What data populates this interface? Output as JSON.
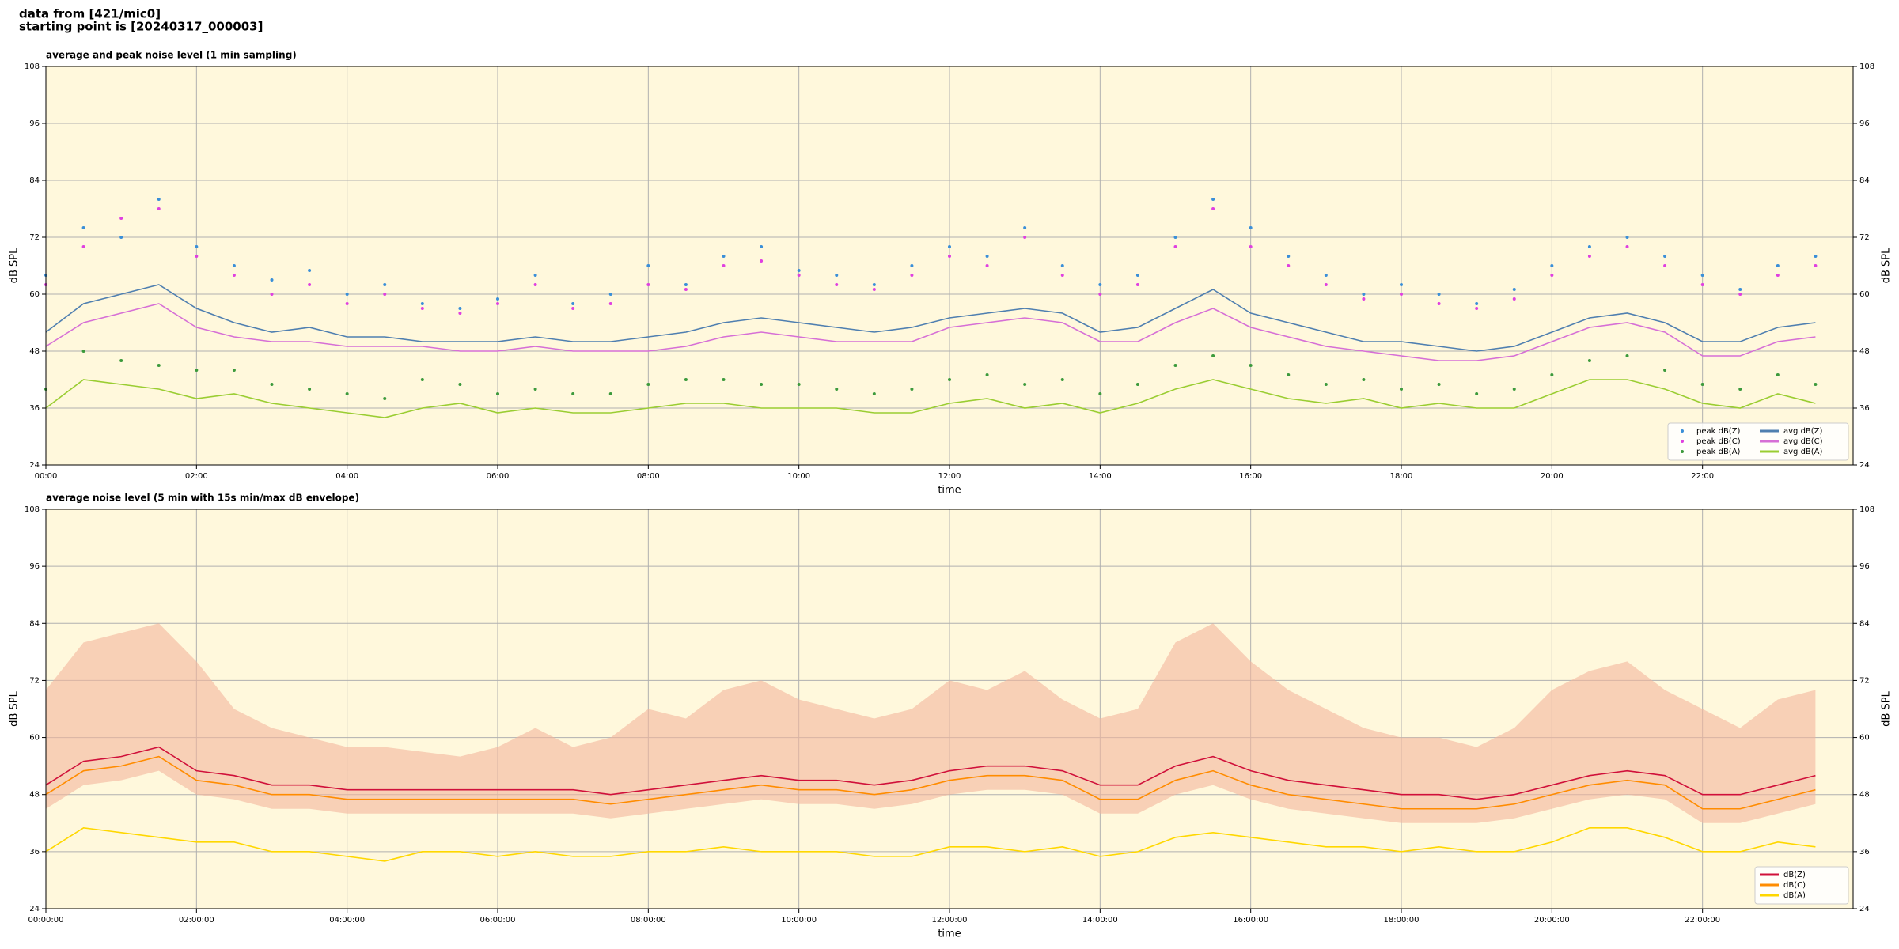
{
  "header": [
    "data from [421/mic0]",
    "starting point is [20240317_000003]"
  ],
  "chart_data": [
    {
      "type": "line",
      "title": "average and peak noise level (1 min sampling)",
      "x_label": "time",
      "y_label": "dB SPL",
      "x": [
        "00:00",
        "00:30",
        "01:00",
        "01:30",
        "02:00",
        "02:30",
        "03:00",
        "03:30",
        "04:00",
        "04:30",
        "05:00",
        "05:30",
        "06:00",
        "06:30",
        "07:00",
        "07:30",
        "08:00",
        "08:30",
        "09:00",
        "09:30",
        "10:00",
        "10:30",
        "11:00",
        "11:30",
        "12:00",
        "12:30",
        "13:00",
        "13:30",
        "14:00",
        "14:30",
        "15:00",
        "15:30",
        "16:00",
        "16:30",
        "17:00",
        "17:30",
        "18:00",
        "18:30",
        "19:00",
        "19:30",
        "20:00",
        "20:30",
        "21:00",
        "21:30",
        "22:00",
        "22:30",
        "23:00",
        "23:30"
      ],
      "xlim": [
        "00:00",
        "24:00"
      ],
      "xticks": [
        "00:00",
        "02:00",
        "04:00",
        "06:00",
        "08:00",
        "10:00",
        "12:00",
        "14:00",
        "16:00",
        "18:00",
        "20:00",
        "22:00"
      ],
      "ylim": [
        24,
        108
      ],
      "yticks": [
        24,
        36,
        48,
        60,
        72,
        84,
        96,
        108
      ],
      "grid": true,
      "legend": "lower right",
      "legend_columns": 2,
      "series": [
        {
          "name": "peak dB(Z)",
          "style": "points",
          "color": "#3a8fd8",
          "values": [
            64,
            74,
            72,
            80,
            70,
            66,
            63,
            65,
            60,
            62,
            58,
            57,
            59,
            64,
            58,
            60,
            66,
            62,
            68,
            70,
            65,
            64,
            62,
            66,
            70,
            68,
            74,
            66,
            62,
            64,
            72,
            80,
            74,
            68,
            64,
            60,
            62,
            60,
            58,
            61,
            66,
            70,
            72,
            68,
            64,
            61,
            66,
            68
          ]
        },
        {
          "name": "peak dB(C)",
          "style": "points",
          "color": "#e040e0",
          "values": [
            62,
            70,
            76,
            78,
            68,
            64,
            60,
            62,
            58,
            60,
            57,
            56,
            58,
            62,
            57,
            58,
            62,
            61,
            66,
            67,
            64,
            62,
            61,
            64,
            68,
            66,
            72,
            64,
            60,
            62,
            70,
            78,
            70,
            66,
            62,
            59,
            60,
            58,
            57,
            59,
            64,
            68,
            70,
            66,
            62,
            60,
            64,
            66
          ]
        },
        {
          "name": "peak dB(A)",
          "style": "points",
          "color": "#3c9a3c",
          "values": [
            40,
            48,
            46,
            45,
            44,
            44,
            41,
            40,
            39,
            38,
            42,
            41,
            39,
            40,
            39,
            39,
            41,
            42,
            42,
            41,
            41,
            40,
            39,
            40,
            42,
            43,
            41,
            42,
            39,
            41,
            45,
            47,
            45,
            43,
            41,
            42,
            40,
            41,
            39,
            40,
            43,
            46,
            47,
            44,
            41,
            40,
            43,
            41
          ]
        },
        {
          "name": "avg dB(Z)",
          "style": "line",
          "color": "#4f7fb0",
          "values": [
            52,
            58,
            60,
            62,
            57,
            54,
            52,
            53,
            51,
            51,
            50,
            50,
            50,
            51,
            50,
            50,
            51,
            52,
            54,
            55,
            54,
            53,
            52,
            53,
            55,
            56,
            57,
            56,
            52,
            53,
            57,
            61,
            56,
            54,
            52,
            50,
            50,
            49,
            48,
            49,
            52,
            55,
            56,
            54,
            50,
            50,
            53,
            54
          ]
        },
        {
          "name": "avg dB(C)",
          "style": "line",
          "color": "#d66fd6",
          "values": [
            49,
            54,
            56,
            58,
            53,
            51,
            50,
            50,
            49,
            49,
            49,
            48,
            48,
            49,
            48,
            48,
            48,
            49,
            51,
            52,
            51,
            50,
            50,
            50,
            53,
            54,
            55,
            54,
            50,
            50,
            54,
            57,
            53,
            51,
            49,
            48,
            47,
            46,
            46,
            47,
            50,
            53,
            54,
            52,
            47,
            47,
            50,
            51
          ]
        },
        {
          "name": "avg dB(A)",
          "style": "line",
          "color": "#9acd32",
          "values": [
            36,
            42,
            41,
            40,
            38,
            39,
            37,
            36,
            35,
            34,
            36,
            37,
            35,
            36,
            35,
            35,
            36,
            37,
            37,
            36,
            36,
            36,
            35,
            35,
            37,
            38,
            36,
            37,
            35,
            37,
            40,
            42,
            40,
            38,
            37,
            38,
            36,
            37,
            36,
            36,
            39,
            42,
            42,
            40,
            37,
            36,
            39,
            37
          ]
        }
      ]
    },
    {
      "type": "line",
      "title": "average noise level (5 min with 15s min/max dB envelope)",
      "x_label": "time",
      "y_label": "dB SPL",
      "x": [
        "00:00:00",
        "00:30:00",
        "01:00:00",
        "01:30:00",
        "02:00:00",
        "02:30:00",
        "03:00:00",
        "03:30:00",
        "04:00:00",
        "04:30:00",
        "05:00:00",
        "05:30:00",
        "06:00:00",
        "06:30:00",
        "07:00:00",
        "07:30:00",
        "08:00:00",
        "08:30:00",
        "09:00:00",
        "09:30:00",
        "10:00:00",
        "10:30:00",
        "11:00:00",
        "11:30:00",
        "12:00:00",
        "12:30:00",
        "13:00:00",
        "13:30:00",
        "14:00:00",
        "14:30:00",
        "15:00:00",
        "15:30:00",
        "16:00:00",
        "16:30:00",
        "17:00:00",
        "17:30:00",
        "18:00:00",
        "18:30:00",
        "19:00:00",
        "19:30:00",
        "20:00:00",
        "20:30:00",
        "21:00:00",
        "21:30:00",
        "22:00:00",
        "22:30:00",
        "23:00:00",
        "23:30:00"
      ],
      "xlim": [
        "00:00:00",
        "24:00:00"
      ],
      "xticks": [
        "00:00:00",
        "02:00:00",
        "04:00:00",
        "06:00:00",
        "08:00:00",
        "10:00:00",
        "12:00:00",
        "14:00:00",
        "16:00:00",
        "18:00:00",
        "20:00:00",
        "22:00:00"
      ],
      "ylim": [
        24,
        108
      ],
      "yticks": [
        24,
        36,
        48,
        60,
        72,
        84,
        96,
        108
      ],
      "grid": true,
      "legend": "lower right",
      "legend_columns": 1,
      "envelope": {
        "color": "#f4b59c",
        "low": [
          45,
          50,
          51,
          53,
          48,
          47,
          45,
          45,
          44,
          44,
          44,
          44,
          44,
          44,
          44,
          43,
          44,
          45,
          46,
          47,
          46,
          46,
          45,
          46,
          48,
          49,
          49,
          48,
          44,
          44,
          48,
          50,
          47,
          45,
          44,
          43,
          42,
          42,
          42,
          43,
          45,
          47,
          48,
          47,
          42,
          42,
          44,
          46
        ],
        "high": [
          70,
          80,
          82,
          84,
          76,
          66,
          62,
          60,
          58,
          58,
          57,
          56,
          58,
          62,
          58,
          60,
          66,
          64,
          70,
          72,
          68,
          66,
          64,
          66,
          72,
          70,
          74,
          68,
          64,
          66,
          80,
          84,
          76,
          70,
          66,
          62,
          60,
          60,
          58,
          62,
          70,
          74,
          76,
          70,
          66,
          62,
          68,
          70
        ]
      },
      "series": [
        {
          "name": "dB(Z)",
          "style": "line",
          "color": "#d0103a",
          "values": [
            50,
            55,
            56,
            58,
            53,
            52,
            50,
            50,
            49,
            49,
            49,
            49,
            49,
            49,
            49,
            48,
            49,
            50,
            51,
            52,
            51,
            51,
            50,
            51,
            53,
            54,
            54,
            53,
            50,
            50,
            54,
            56,
            53,
            51,
            50,
            49,
            48,
            48,
            47,
            48,
            50,
            52,
            53,
            52,
            48,
            48,
            50,
            52
          ]
        },
        {
          "name": "dB(C)",
          "style": "line",
          "color": "#ff8c00",
          "values": [
            48,
            53,
            54,
            56,
            51,
            50,
            48,
            48,
            47,
            47,
            47,
            47,
            47,
            47,
            47,
            46,
            47,
            48,
            49,
            50,
            49,
            49,
            48,
            49,
            51,
            52,
            52,
            51,
            47,
            47,
            51,
            53,
            50,
            48,
            47,
            46,
            45,
            45,
            45,
            46,
            48,
            50,
            51,
            50,
            45,
            45,
            47,
            49
          ]
        },
        {
          "name": "dB(A)",
          "style": "line",
          "color": "#ffd700",
          "values": [
            36,
            41,
            40,
            39,
            38,
            38,
            36,
            36,
            35,
            34,
            36,
            36,
            35,
            36,
            35,
            35,
            36,
            36,
            37,
            36,
            36,
            36,
            35,
            35,
            37,
            37,
            36,
            37,
            35,
            36,
            39,
            40,
            39,
            38,
            37,
            37,
            36,
            37,
            36,
            36,
            38,
            41,
            41,
            39,
            36,
            36,
            38,
            37
          ]
        }
      ]
    }
  ]
}
